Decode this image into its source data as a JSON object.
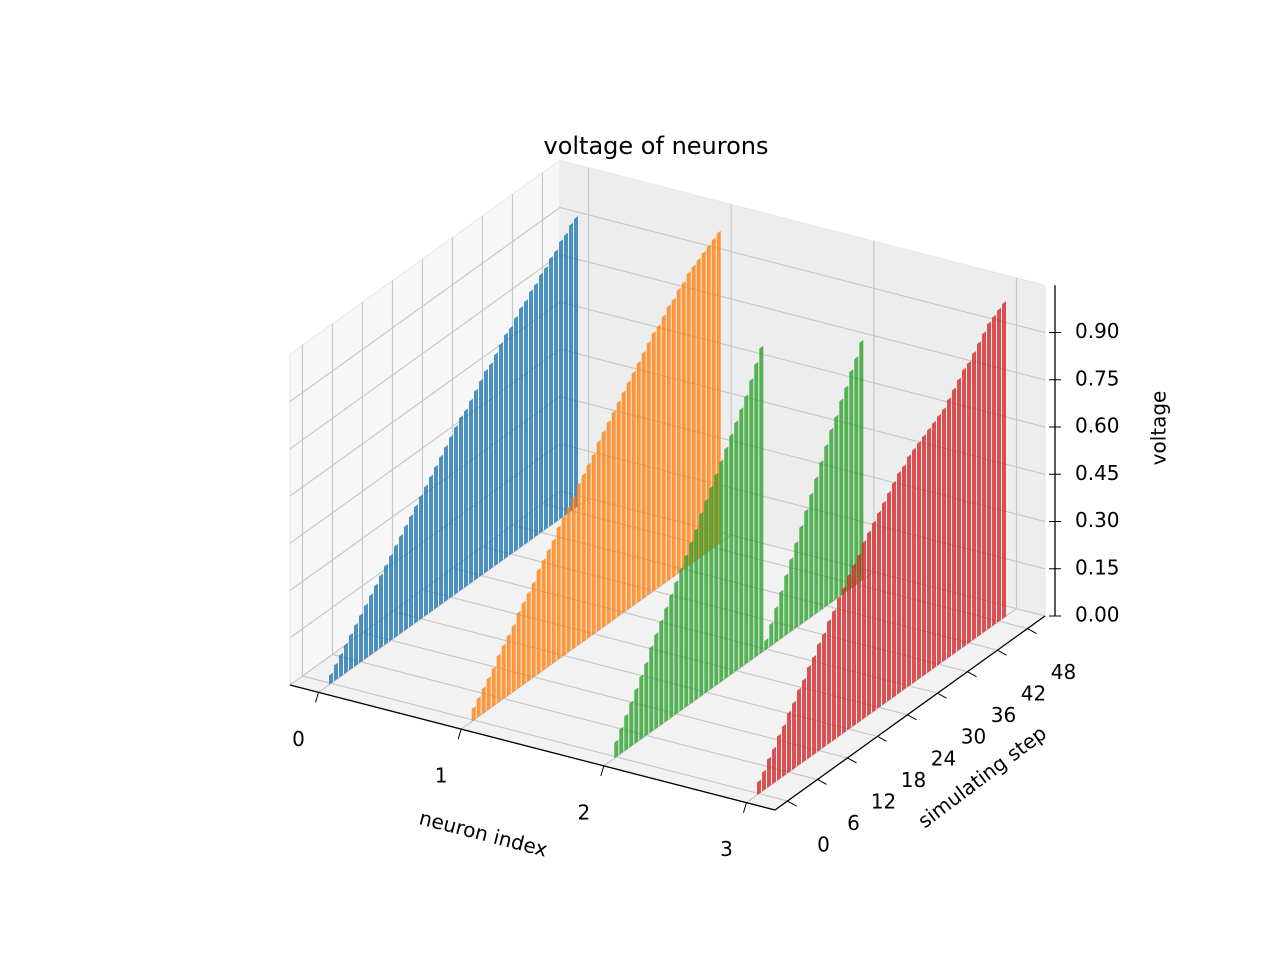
{
  "chart_data": {
    "type": "bar3d",
    "title": "voltage of neurons",
    "xlabel": "neuron index",
    "ylabel": "simulating step",
    "zlabel": "voltage",
    "xlim": [
      -0.2,
      3.2
    ],
    "ylim": [
      -2.5,
      51.5
    ],
    "zlim": [
      0,
      1.05
    ],
    "xticks": [
      0,
      1,
      2,
      3
    ],
    "yticks": [
      0,
      6,
      12,
      18,
      24,
      30,
      36,
      42,
      48
    ],
    "zticks": [
      {
        "value": 0,
        "label": "0.00"
      },
      {
        "value": 0.15,
        "label": "0.15"
      },
      {
        "value": 0.3,
        "label": "0.30"
      },
      {
        "value": 0.45,
        "label": "0.45"
      },
      {
        "value": 0.6,
        "label": "0.60"
      },
      {
        "value": 0.75,
        "label": "0.75"
      },
      {
        "value": 0.9,
        "label": "0.90"
      }
    ],
    "grid": true,
    "steps": [
      0,
      1,
      2,
      3,
      4,
      5,
      6,
      7,
      8,
      9,
      10,
      11,
      12,
      13,
      14,
      15,
      16,
      17,
      18,
      19,
      20,
      21,
      22,
      23,
      24,
      25,
      26,
      27,
      28,
      29,
      30,
      31,
      32,
      33,
      34,
      35,
      36,
      37,
      38,
      39,
      40,
      41,
      42,
      43,
      44,
      45,
      46,
      47,
      48,
      49
    ],
    "series": [
      {
        "x": 0,
        "color": "#1f77b4",
        "values": [
          0.03,
          0.05,
          0.07,
          0.09,
          0.11,
          0.13,
          0.15,
          0.17,
          0.19,
          0.21,
          0.23,
          0.25,
          0.27,
          0.29,
          0.31,
          0.33,
          0.35,
          0.37,
          0.39,
          0.41,
          0.43,
          0.45,
          0.47,
          0.49,
          0.51,
          0.53,
          0.55,
          0.56,
          0.58,
          0.6,
          0.62,
          0.64,
          0.65,
          0.67,
          0.69,
          0.71,
          0.72,
          0.74,
          0.76,
          0.77,
          0.79,
          0.8,
          0.82,
          0.83,
          0.85,
          0.86,
          0.88,
          0.89,
          0.91,
          0.92
        ]
      },
      {
        "x": 1,
        "color": "#ff7f0e",
        "values": [
          0.04,
          0.06,
          0.08,
          0.1,
          0.12,
          0.15,
          0.17,
          0.19,
          0.21,
          0.24,
          0.26,
          0.28,
          0.3,
          0.33,
          0.35,
          0.37,
          0.39,
          0.42,
          0.44,
          0.46,
          0.48,
          0.51,
          0.53,
          0.55,
          0.57,
          0.6,
          0.62,
          0.64,
          0.66,
          0.68,
          0.7,
          0.72,
          0.74,
          0.76,
          0.78,
          0.8,
          0.82,
          0.83,
          0.85,
          0.87,
          0.88,
          0.9,
          0.91,
          0.93,
          0.94,
          0.95,
          0.96,
          0.97,
          0.98,
          0.99
        ]
      },
      {
        "x": 2,
        "color": "#2ca02c",
        "values": [
          0.05,
          0.08,
          0.11,
          0.14,
          0.17,
          0.2,
          0.23,
          0.27,
          0.3,
          0.33,
          0.36,
          0.39,
          0.42,
          0.45,
          0.48,
          0.51,
          0.54,
          0.58,
          0.61,
          0.64,
          0.67,
          0.7,
          0.73,
          0.76,
          0.79,
          0.82,
          0.85,
          0.89,
          0.93,
          0.97,
          0.03,
          0.07,
          0.11,
          0.15,
          0.19,
          0.23,
          0.27,
          0.31,
          0.35,
          0.39,
          0.43,
          0.47,
          0.51,
          0.55,
          0.58,
          0.62,
          0.65,
          0.69,
          0.72,
          0.76
        ]
      },
      {
        "x": 3,
        "color": "#d62728",
        "values": [
          0.04,
          0.06,
          0.09,
          0.11,
          0.14,
          0.16,
          0.19,
          0.21,
          0.24,
          0.26,
          0.29,
          0.31,
          0.34,
          0.36,
          0.39,
          0.41,
          0.44,
          0.46,
          0.49,
          0.51,
          0.53,
          0.56,
          0.58,
          0.6,
          0.62,
          0.64,
          0.66,
          0.68,
          0.7,
          0.71,
          0.73,
          0.74,
          0.75,
          0.76,
          0.77,
          0.78,
          0.79,
          0.8,
          0.82,
          0.84,
          0.86,
          0.88,
          0.89,
          0.91,
          0.93,
          0.95,
          0.97,
          0.98,
          0.99,
          1.0
        ]
      }
    ]
  }
}
